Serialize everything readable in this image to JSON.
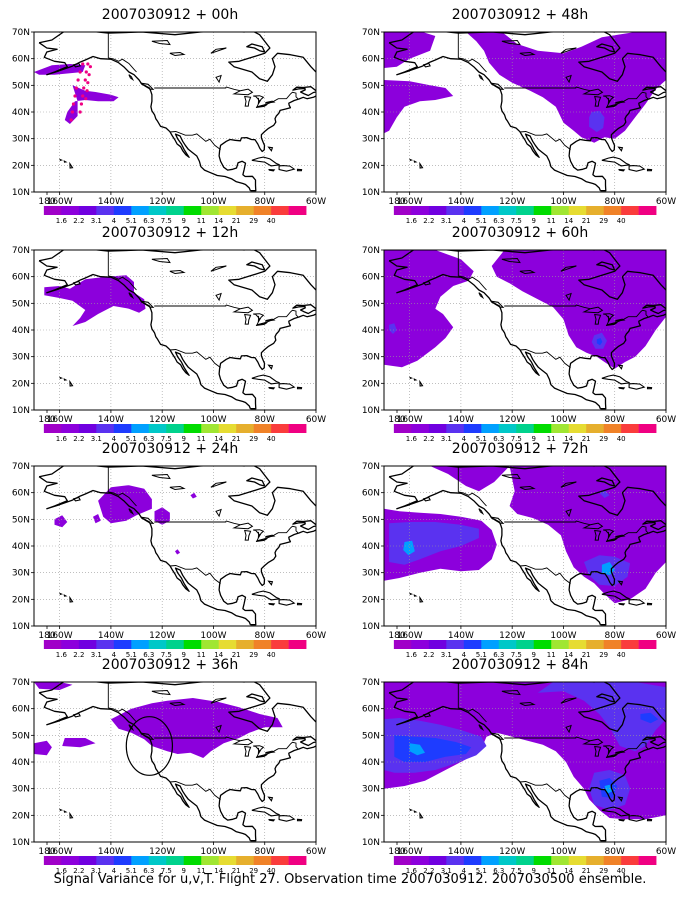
{
  "panels": [
    {
      "id": "p00",
      "title": "2007030912 + 00h",
      "col": 0,
      "row": 0,
      "level": 0
    },
    {
      "id": "p12",
      "title": "2007030912 + 12h",
      "col": 0,
      "row": 1,
      "level": 1
    },
    {
      "id": "p24",
      "title": "2007030912 + 24h",
      "col": 0,
      "row": 2,
      "level": 2
    },
    {
      "id": "p36",
      "title": "2007030912 + 36h",
      "col": 0,
      "row": 3,
      "level": 3
    },
    {
      "id": "p48",
      "title": "2007030912 + 48h",
      "col": 1,
      "row": 0,
      "level": 4
    },
    {
      "id": "p60",
      "title": "2007030912 + 60h",
      "col": 1,
      "row": 1,
      "level": 5
    },
    {
      "id": "p72",
      "title": "2007030912 + 72h",
      "col": 1,
      "row": 2,
      "level": 6
    },
    {
      "id": "p84",
      "title": "2007030912 + 84h",
      "col": 1,
      "row": 3,
      "level": 7
    }
  ],
  "axes": {
    "lat_labels": [
      "70N",
      "60N",
      "50N",
      "40N",
      "30N",
      "20N",
      "10N"
    ],
    "lon_labels": [
      "180",
      "160W",
      "140W",
      "120W",
      "100W",
      "80W",
      "60W"
    ],
    "lat_values": [
      70,
      60,
      50,
      40,
      30,
      20,
      10
    ],
    "lon_values": [
      180,
      160,
      140,
      120,
      100,
      80,
      60
    ]
  },
  "legend": {
    "labels": [
      "1.6",
      "2.2",
      "3.1",
      "4",
      "5.1",
      "6.3",
      "7.5",
      "9",
      "11",
      "14",
      "21",
      "29",
      "40"
    ],
    "colors": [
      "#a000c8",
      "#8c00dc",
      "#7000e0",
      "#5a32f0",
      "#1e3cff",
      "#00a0ff",
      "#00c8c8",
      "#00d28c",
      "#00dc00",
      "#a0e632",
      "#e6dc32",
      "#e6af2d",
      "#f08228",
      "#fa3c3c",
      "#f00082"
    ]
  },
  "colors": {
    "variance_low": "#8c00dc",
    "variance_mid": "#5a32f0",
    "variance_high": "#1e3cff",
    "variance_peak": "#00a0ff",
    "observation_dots": "#f00082"
  },
  "caption": "Signal Variance for u,v,T. Flight 27. Observation time 2007030912. 2007030500 ensemble."
}
